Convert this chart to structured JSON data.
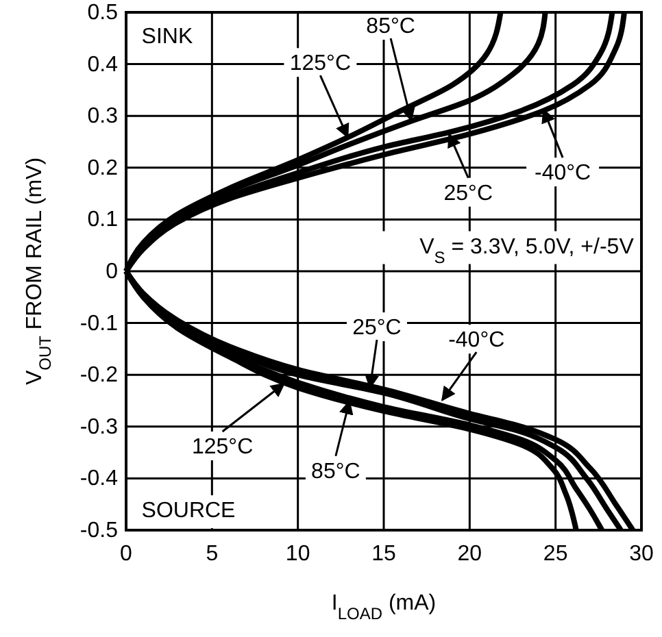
{
  "chart_data": {
    "type": "line",
    "xlabel": "I$_{LOAD}$ (mA)",
    "ylabel": "V$_{OUT}$ FROM RAIL (mV)",
    "xlim": [
      0,
      30
    ],
    "xticks": [
      0,
      5,
      10,
      15,
      20,
      25,
      30
    ],
    "ylim": [
      -0.5,
      0.5
    ],
    "yticks": [
      -0.5,
      -0.4,
      -0.3,
      -0.2,
      -0.1,
      0,
      0.1,
      0.2,
      0.3,
      0.4,
      0.5
    ],
    "grid": true,
    "line_style": "solid",
    "marker": "none",
    "series": [
      {
        "color": "#000000",
        "x": [
          0,
          1,
          3,
          6,
          10,
          13,
          16,
          19,
          21,
          21.8
        ],
        "values": [
          0,
          0.055,
          0.11,
          0.16,
          0.215,
          0.26,
          0.31,
          0.36,
          0.42,
          0.5
        ]
      },
      {
        "color": "#000000",
        "x": [
          0,
          1,
          3,
          6,
          10,
          13,
          16.6,
          20,
          22.5,
          24,
          24.4
        ],
        "values": [
          0,
          0.05,
          0.105,
          0.155,
          0.205,
          0.245,
          0.29,
          0.33,
          0.38,
          0.44,
          0.5
        ]
      },
      {
        "color": "#000000",
        "x": [
          0,
          1,
          3,
          6,
          10,
          15,
          19,
          23,
          26,
          27.6,
          28.3
        ],
        "values": [
          0,
          0.045,
          0.1,
          0.145,
          0.19,
          0.24,
          0.27,
          0.31,
          0.36,
          0.42,
          0.5
        ]
      },
      {
        "color": "#000000",
        "x": [
          0,
          1,
          3,
          6,
          10,
          15,
          20,
          24.3,
          27,
          28.5,
          29
        ],
        "values": [
          0,
          0.043,
          0.095,
          0.14,
          0.18,
          0.225,
          0.265,
          0.31,
          0.36,
          0.43,
          0.5
        ]
      },
      {
        "color": "#000000",
        "x": [
          0,
          1,
          3,
          6,
          10,
          15,
          20,
          23,
          24.8,
          25.6,
          26.2
        ],
        "values": [
          0,
          -0.05,
          -0.11,
          -0.165,
          -0.225,
          -0.27,
          -0.305,
          -0.335,
          -0.38,
          -0.43,
          -0.5
        ]
      },
      {
        "color": "#000000",
        "x": [
          0,
          1,
          3,
          6,
          10,
          15,
          20,
          23,
          25,
          26.2,
          27,
          27.7
        ],
        "values": [
          0,
          -0.048,
          -0.105,
          -0.16,
          -0.215,
          -0.262,
          -0.297,
          -0.325,
          -0.365,
          -0.42,
          -0.46,
          -0.5
        ]
      },
      {
        "color": "#000000",
        "x": [
          0,
          1,
          3,
          6,
          10,
          15,
          20,
          23,
          25,
          26.8,
          28,
          28.8
        ],
        "values": [
          0,
          -0.045,
          -0.1,
          -0.15,
          -0.2,
          -0.235,
          -0.285,
          -0.31,
          -0.34,
          -0.4,
          -0.46,
          -0.5
        ]
      },
      {
        "color": "#000000",
        "x": [
          0,
          1,
          3,
          6,
          10,
          15,
          20,
          23,
          25,
          27,
          28.5,
          29.5
        ],
        "values": [
          0,
          -0.043,
          -0.095,
          -0.145,
          -0.19,
          -0.228,
          -0.275,
          -0.3,
          -0.325,
          -0.38,
          -0.45,
          -0.5
        ]
      }
    ],
    "annotations": [
      {
        "text": "125°C",
        "x": 12.9,
        "y": 0.259
      },
      {
        "text": "85°C",
        "x": 16.6,
        "y": 0.291
      },
      {
        "text": "25°C",
        "x": 18.8,
        "y": 0.265
      },
      {
        "text": "-40°C",
        "x": 24.3,
        "y": 0.312
      },
      {
        "text": "25°C",
        "x": 14.2,
        "y": -0.225
      },
      {
        "text": "-40°C",
        "x": 18.4,
        "y": -0.249
      },
      {
        "text": "125°C",
        "x": 9.2,
        "y": -0.217
      },
      {
        "text": "85°C",
        "x": 13,
        "y": -0.251
      },
      "SINK",
      "SOURCE",
      "V$_{S}$ = 3.3V, 5.0V, +/-5V"
    ]
  }
}
